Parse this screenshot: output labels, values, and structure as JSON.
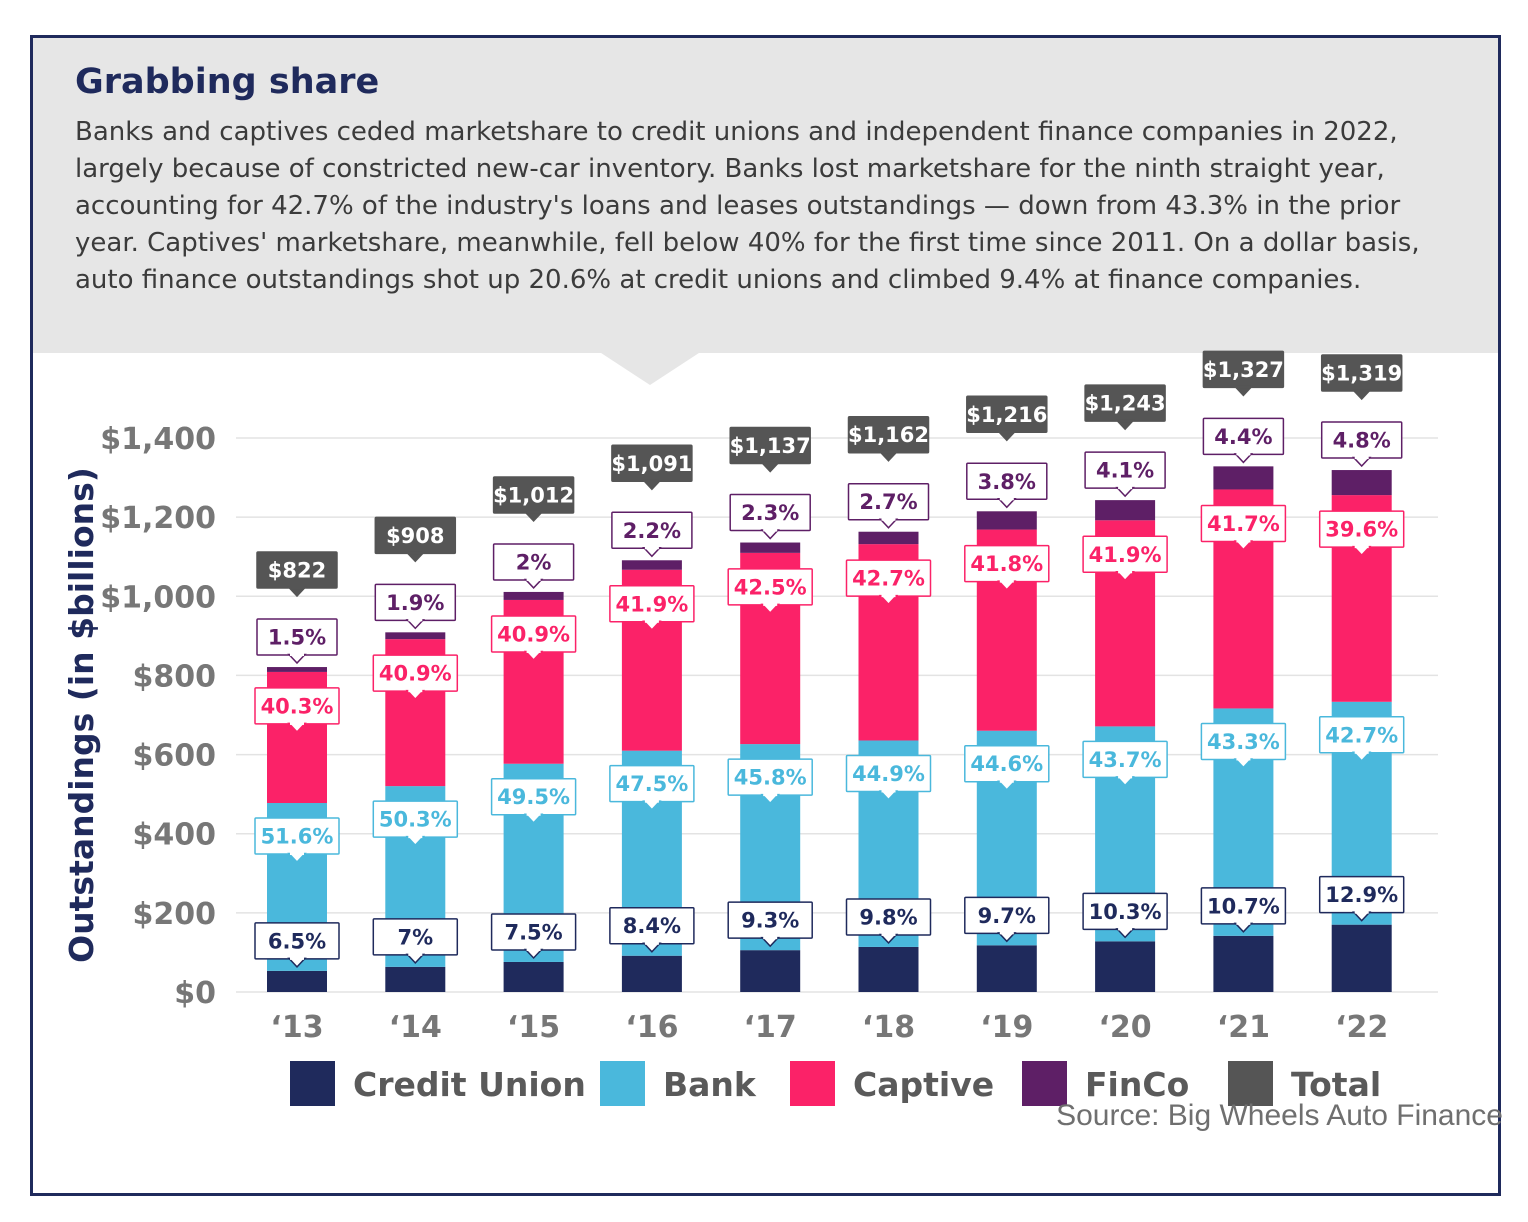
{
  "header": {
    "title": "Grabbing share",
    "description": "Banks and captives ceded marketshare to credit unions and independent finance companies in 2022, largely because of constricted new-car inventory. Banks lost marketshare for the ninth straight year, accounting for 42.7% of the industry's loans and leases outstandings — down from 43.3% in the prior year. Captives' marketshare, meanwhile, fell below 40% for the first time since 2011. On a dollar basis, auto finance outstandings shot up 20.6% at credit unions and climbed 9.4% at finance companies."
  },
  "source": "Source: Big Wheels Auto Finance",
  "colors": {
    "credit_union": "#1f2a5c",
    "bank": "#4ab8dc",
    "captive": "#fb2268",
    "finco": "#5e1f66",
    "total": "#555555",
    "grid": "#e3e3e3",
    "axis_text": "#777777"
  },
  "chart_data": {
    "type": "bar",
    "stacked": true,
    "categories": [
      "‘13",
      "‘14",
      "‘15",
      "‘16",
      "‘17",
      "‘18",
      "‘19",
      "‘20",
      "‘21",
      "‘22"
    ],
    "ylabel": "Outstandings (in $billions)",
    "ylim": [
      0,
      1400
    ],
    "yticks": [
      0,
      200,
      400,
      600,
      800,
      1000,
      1200,
      1400
    ],
    "ytick_labels": [
      "$0",
      "$200",
      "$400",
      "$600",
      "$800",
      "$1,000",
      "$1,200",
      "$1,400"
    ],
    "grid": true,
    "legend_position": "bottom",
    "totals": [
      822,
      908,
      1012,
      1091,
      1137,
      1162,
      1216,
      1243,
      1327,
      1319
    ],
    "total_labels": [
      "$822",
      "$908",
      "$1,012",
      "$1,091",
      "$1,137",
      "$1,162",
      "$1,216",
      "$1,243",
      "$1,327",
      "$1,319"
    ],
    "series": [
      {
        "name": "Credit Union",
        "key": "credit_union",
        "percent": [
          6.5,
          7,
          7.5,
          8.4,
          9.3,
          9.8,
          9.7,
          10.3,
          10.7,
          12.9
        ],
        "labels": [
          "6.5%",
          "7%",
          "7.5%",
          "8.4%",
          "9.3%",
          "9.8%",
          "9.7%",
          "10.3%",
          "10.7%",
          "12.9%"
        ]
      },
      {
        "name": "Bank",
        "key": "bank",
        "percent": [
          51.6,
          50.3,
          49.5,
          47.5,
          45.8,
          44.9,
          44.6,
          43.7,
          43.3,
          42.7
        ],
        "labels": [
          "51.6%",
          "50.3%",
          "49.5%",
          "47.5%",
          "45.8%",
          "44.9%",
          "44.6%",
          "43.7%",
          "43.3%",
          "42.7%"
        ]
      },
      {
        "name": "Captive",
        "key": "captive",
        "percent": [
          40.3,
          40.9,
          40.9,
          41.9,
          42.5,
          42.7,
          41.8,
          41.9,
          41.7,
          39.6
        ],
        "labels": [
          "40.3%",
          "40.9%",
          "40.9%",
          "41.9%",
          "42.5%",
          "42.7%",
          "41.8%",
          "41.9%",
          "41.7%",
          "39.6%"
        ]
      },
      {
        "name": "FinCo",
        "key": "finco",
        "percent": [
          1.5,
          1.9,
          2,
          2.2,
          2.3,
          2.7,
          3.8,
          4.1,
          4.4,
          4.8
        ],
        "labels": [
          "1.5%",
          "1.9%",
          "2%",
          "2.2%",
          "2.3%",
          "2.7%",
          "3.8%",
          "4.1%",
          "4.4%",
          "4.8%"
        ]
      }
    ],
    "legend": [
      "Credit Union",
      "Bank",
      "Captive",
      "FinCo",
      "Total"
    ]
  }
}
